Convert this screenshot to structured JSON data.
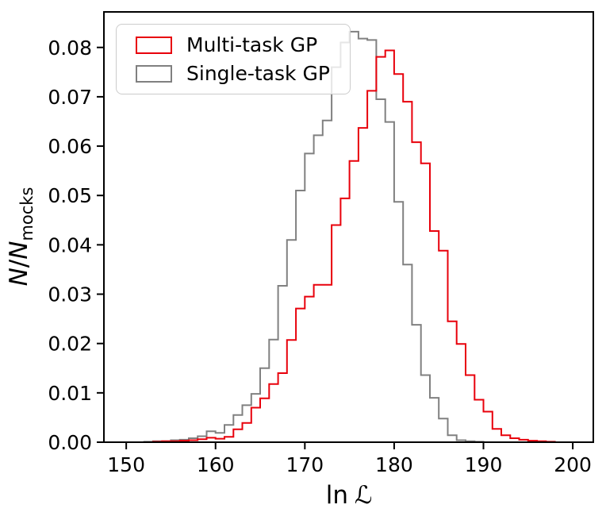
{
  "figure": {
    "xlabel_prefix": "ln",
    "xlabel_script": "ℒ",
    "ylabel_n1": "N",
    "ylabel_slash": "/",
    "ylabel_n2": "N",
    "ylabel_sub": "mocks"
  },
  "legend": {
    "items": [
      {
        "label": "Multi-task GP",
        "color": "#e8000b"
      },
      {
        "label": "Single-task GP",
        "color": "#808080"
      }
    ]
  },
  "chart_data": {
    "type": "step-histogram",
    "title": "",
    "xlabel": "ln ℒ",
    "ylabel": "N/N_mocks",
    "xlim": [
      147.5,
      202.3
    ],
    "ylim": [
      0,
      0.0872
    ],
    "xticks": [
      150,
      160,
      170,
      180,
      190,
      200
    ],
    "yticks": [
      0.0,
      0.01,
      0.02,
      0.03,
      0.04,
      0.05,
      0.06,
      0.07,
      0.08
    ],
    "grid": false,
    "legend_position": "upper left",
    "series": [
      {
        "name": "Single-task GP",
        "color": "#808080",
        "bin_start": 152,
        "bin_width": 1,
        "heights": [
          0.0001,
          0.0002,
          0.0002,
          0.0004,
          0.0005,
          0.0008,
          0.0012,
          0.0022,
          0.0019,
          0.0035,
          0.0055,
          0.0075,
          0.0098,
          0.015,
          0.0208,
          0.0317,
          0.041,
          0.051,
          0.0585,
          0.0622,
          0.0652,
          0.076,
          0.081,
          0.0832,
          0.0818,
          0.0815,
          0.0695,
          0.0649,
          0.0487,
          0.036,
          0.0238,
          0.0136,
          0.009,
          0.0048,
          0.0014,
          0.0004,
          0.0002,
          0.0001
        ]
      },
      {
        "name": "Multi-task GP",
        "color": "#e8000b",
        "bin_start": 153,
        "bin_width": 1,
        "heights": [
          0.0001,
          0.0002,
          0.0002,
          0.0003,
          0.0004,
          0.0006,
          0.0009,
          0.0007,
          0.0011,
          0.0026,
          0.0039,
          0.007,
          0.0089,
          0.0118,
          0.014,
          0.0207,
          0.0271,
          0.0295,
          0.0319,
          0.0319,
          0.044,
          0.0494,
          0.057,
          0.0637,
          0.0712,
          0.0781,
          0.0794,
          0.0746,
          0.069,
          0.0608,
          0.0565,
          0.0428,
          0.0388,
          0.0245,
          0.0199,
          0.0136,
          0.0086,
          0.0062,
          0.0027,
          0.0014,
          0.0008,
          0.0005,
          0.0003,
          0.0002,
          0.0001
        ]
      }
    ]
  }
}
